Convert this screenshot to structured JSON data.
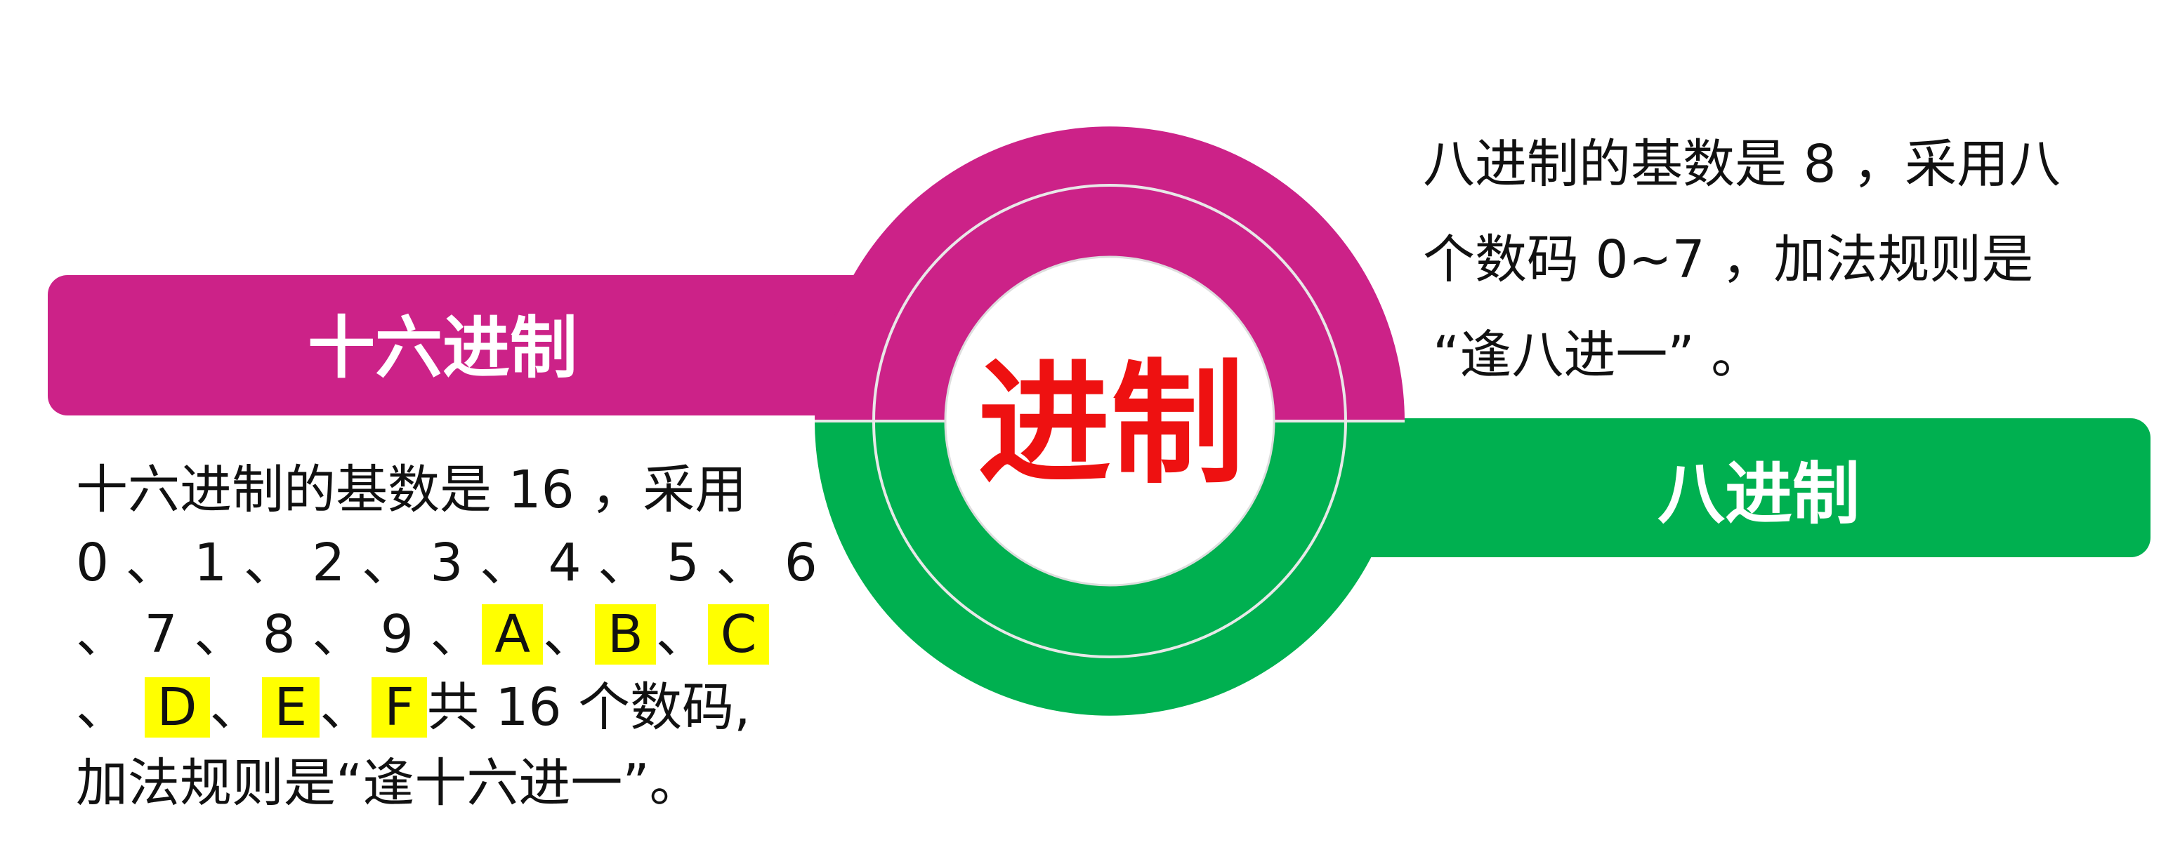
{
  "colors": {
    "magenta": "#cc2288",
    "green": "#00b050",
    "ring_line": "#e0e0e0",
    "center_text": "#ee1111",
    "highlight": "#ffff00"
  },
  "center": {
    "title": "进制"
  },
  "hex": {
    "banner_label": "十六进制",
    "lines": [
      "十六进制的基数是 16 ，采用",
      "0 、 1 、 2 、 3 、 4 、 5 、 6",
      "、 7 、 8 、 9 、"
    ],
    "letters": [
      "A",
      "B",
      "C",
      "D",
      "E",
      "F"
    ],
    "sep": "、",
    "line4_tail": "共 16 个数码,",
    "line5": "加法规则是“逢十六进一”。"
  },
  "oct": {
    "banner_label": "八进制",
    "lines": [
      "八进制的基数是 8 ，采用八",
      "个数码 0~7 ，加法规则是",
      "“逢八进一” 。"
    ]
  }
}
